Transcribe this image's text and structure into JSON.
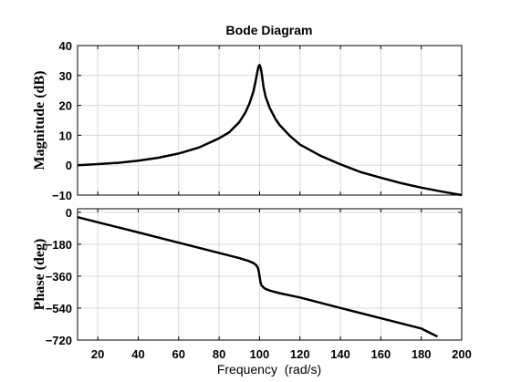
{
  "chart_data": [
    {
      "type": "line",
      "panel": "magnitude",
      "title": "Bode Diagram",
      "xlabel": "",
      "ylabel": "Magnitude (dB)",
      "xlim": [
        10,
        200
      ],
      "ylim": [
        -10,
        40
      ],
      "xticks": [
        20,
        40,
        60,
        80,
        100,
        120,
        140,
        160,
        180,
        200
      ],
      "yticks": [
        -10,
        0,
        10,
        20,
        30,
        40
      ],
      "ytick_labels": [
        "−10",
        "0",
        "10",
        "20",
        "30",
        "40"
      ],
      "grid": true,
      "series": [
        {
          "x": [
            10,
            20,
            30,
            40,
            50,
            60,
            70,
            80,
            85,
            90,
            93,
            95,
            97,
            98,
            99,
            99.5,
            100,
            100.5,
            101,
            102,
            103,
            105,
            108,
            110,
            115,
            120,
            130,
            140,
            150,
            160,
            170,
            180,
            190,
            200
          ],
          "values": [
            0,
            0.35,
            0.8,
            1.5,
            2.5,
            3.9,
            5.9,
            9.0,
            11.0,
            14.4,
            17.6,
            20.6,
            24.7,
            27.9,
            31.5,
            33.0,
            33.5,
            32.8,
            31.0,
            26.0,
            22.9,
            19.2,
            15.3,
            13.4,
            9.8,
            6.9,
            3.2,
            0.3,
            -2.3,
            -4.2,
            -6.0,
            -7.5,
            -8.8,
            -10.0
          ]
        }
      ]
    },
    {
      "type": "line",
      "panel": "phase",
      "title": "",
      "xlabel": "Frequency  (rad/s)",
      "ylabel": "Phase (deg)",
      "xlim": [
        10,
        200
      ],
      "ylim": [
        -720,
        20
      ],
      "xticks": [
        20,
        40,
        60,
        80,
        100,
        120,
        140,
        160,
        180,
        200
      ],
      "yticks": [
        0,
        -180,
        -360,
        -540,
        -720
      ],
      "ytick_labels": [
        "0",
        "−180",
        "−360",
        "−540",
        "−720"
      ],
      "grid": true,
      "series": [
        {
          "x": [
            10,
            20,
            40,
            60,
            80,
            90,
            95,
            97,
            98,
            99,
            99.5,
            100,
            100.5,
            101,
            102,
            103,
            105,
            110,
            120,
            140,
            160,
            180,
            188
          ],
          "values": [
            -27,
            -56,
            -113,
            -171,
            -229,
            -258,
            -276,
            -286,
            -294,
            -308,
            -325,
            -360,
            -396,
            -412,
            -424,
            -432,
            -441,
            -456,
            -480,
            -539,
            -597,
            -655,
            -700
          ]
        }
      ]
    }
  ]
}
